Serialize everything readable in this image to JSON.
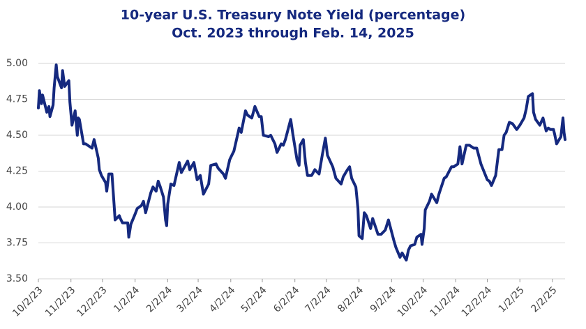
{
  "chart_data": {
    "type": "line",
    "title": "10-year U.S. Treasury Note Yield (percentage)",
    "subtitle": "Oct. 2023 through Feb. 14, 2025",
    "color": "#15297f",
    "grid": true,
    "x": [
      "10/2/23",
      "10/3/23",
      "10/5/23",
      "10/6/23",
      "10/10/23",
      "10/12/23",
      "10/13/23",
      "10/16/23",
      "10/17/23",
      "10/19/23",
      "10/20/23",
      "10/23/23",
      "10/24/23",
      "10/25/23",
      "10/27/23",
      "10/31/23",
      "11/1/23",
      "11/3/23",
      "11/6/23",
      "11/8/23",
      "11/9/23",
      "11/10/23",
      "11/14/23",
      "11/16/23",
      "11/20/23",
      "11/22/23",
      "11/24/23",
      "11/28/23",
      "11/29/23",
      "12/1/23",
      "12/5/23",
      "12/6/23",
      "12/8/23",
      "12/11/23",
      "12/13/23",
      "12/14/23",
      "12/18/23",
      "12/19/23",
      "12/21/23",
      "12/26/23",
      "12/27/23",
      "12/29/23",
      "1/2/24",
      "1/4/24",
      "1/8/24",
      "1/10/24",
      "1/12/24",
      "1/17/24",
      "1/19/24",
      "1/22/24",
      "1/24/24",
      "1/26/24",
      "1/29/24",
      "1/31/24",
      "2/1/24",
      "2/2/24",
      "2/5/24",
      "2/8/24",
      "2/13/24",
      "2/15/24",
      "2/21/24",
      "2/23/24",
      "2/27/24",
      "3/1/24",
      "3/4/24",
      "3/7/24",
      "3/12/24",
      "3/14/24",
      "3/19/24",
      "3/21/24",
      "3/26/24",
      "3/28/24",
      "4/1/24",
      "4/3/24",
      "4/5/24",
      "4/10/24",
      "4/12/24",
      "4/16/24",
      "4/18/24",
      "4/22/24",
      "4/25/24",
      "4/29/24",
      "5/1/24",
      "5/3/24",
      "5/8/24",
      "5/10/24",
      "5/14/24",
      "5/16/24",
      "5/20/24",
      "5/22/24",
      "5/24/24",
      "5/29/24",
      "5/31/24",
      "6/4/24",
      "6/6/24",
      "6/7/24",
      "6/10/24",
      "6/12/24",
      "6/14/24",
      "6/18/24",
      "6/21/24",
      "6/25/24",
      "6/28/24",
      "7/1/24",
      "7/3/24",
      "7/8/24",
      "7/11/24",
      "7/16/24",
      "7/18/24",
      "7/22/24",
      "7/24/24",
      "7/26/24",
      "7/30/24",
      "8/1/24",
      "8/2/24",
      "8/5/24",
      "8/7/24",
      "8/9/24",
      "8/13/24",
      "8/15/24",
      "8/20/24",
      "8/23/24",
      "8/27/24",
      "8/30/24",
      "9/4/24",
      "9/6/24",
      "9/10/24",
      "9/12/24",
      "9/16/24",
      "9/18/24",
      "9/20/24",
      "9/24/24",
      "9/26/24",
      "9/30/24",
      "10/1/24",
      "10/3/24",
      "10/4/24",
      "10/8/24",
      "10/10/24",
      "10/15/24",
      "10/17/24",
      "10/22/24",
      "10/24/24",
      "10/29/24",
      "10/31/24",
      "11/4/24",
      "11/6/24",
      "11/8/24",
      "11/12/24",
      "11/15/24",
      "11/19/24",
      "11/22/24",
      "11/26/24",
      "12/2/24",
      "12/4/24",
      "12/6/24",
      "12/10/24",
      "12/13/24",
      "12/16/24",
      "12/18/24",
      "12/20/24",
      "12/23/24",
      "12/26/24",
      "12/30/24",
      "1/2/25",
      "1/6/25",
      "1/8/25",
      "1/10/25",
      "1/14/25",
      "1/15/25",
      "1/17/25",
      "1/21/25",
      "1/24/25",
      "1/27/25",
      "1/29/25",
      "1/31/25",
      "2/3/25",
      "2/4/25",
      "2/6/25",
      "2/10/25",
      "2/12/25",
      "2/13/25",
      "2/14/25"
    ],
    "values": [
      4.69,
      4.81,
      4.72,
      4.78,
      4.66,
      4.7,
      4.63,
      4.71,
      4.83,
      4.99,
      4.91,
      4.85,
      4.83,
      4.95,
      4.84,
      4.88,
      4.73,
      4.57,
      4.67,
      4.5,
      4.62,
      4.61,
      4.44,
      4.44,
      4.42,
      4.41,
      4.47,
      4.34,
      4.26,
      4.22,
      4.17,
      4.11,
      4.23,
      4.23,
      4.02,
      3.91,
      3.94,
      3.92,
      3.89,
      3.89,
      3.79,
      3.88,
      3.95,
      3.99,
      4.01,
      4.04,
      3.96,
      4.1,
      4.14,
      4.11,
      4.18,
      4.14,
      4.07,
      3.91,
      3.87,
      4.02,
      4.16,
      4.15,
      4.31,
      4.24,
      4.32,
      4.26,
      4.31,
      4.19,
      4.22,
      4.09,
      4.16,
      4.29,
      4.3,
      4.27,
      4.23,
      4.2,
      4.33,
      4.36,
      4.39,
      4.55,
      4.52,
      4.67,
      4.64,
      4.62,
      4.7,
      4.63,
      4.63,
      4.5,
      4.49,
      4.5,
      4.44,
      4.38,
      4.44,
      4.43,
      4.47,
      4.61,
      4.51,
      4.33,
      4.29,
      4.43,
      4.47,
      4.31,
      4.22,
      4.22,
      4.26,
      4.23,
      4.36,
      4.48,
      4.36,
      4.28,
      4.2,
      4.16,
      4.21,
      4.26,
      4.28,
      4.2,
      4.14,
      3.99,
      3.8,
      3.78,
      3.96,
      3.94,
      3.85,
      3.92,
      3.81,
      3.81,
      3.84,
      3.91,
      3.77,
      3.72,
      3.65,
      3.68,
      3.63,
      3.7,
      3.73,
      3.74,
      3.79,
      3.81,
      3.74,
      3.85,
      3.98,
      4.04,
      4.09,
      4.03,
      4.09,
      4.2,
      4.21,
      4.28,
      4.28,
      4.3,
      4.42,
      4.3,
      4.43,
      4.43,
      4.41,
      4.41,
      4.3,
      4.19,
      4.18,
      4.15,
      4.22,
      4.4,
      4.4,
      4.5,
      4.52,
      4.59,
      4.58,
      4.54,
      4.57,
      4.62,
      4.68,
      4.77,
      4.79,
      4.66,
      4.61,
      4.57,
      4.62,
      4.53,
      4.55,
      4.54,
      4.54,
      4.51,
      4.44,
      4.49,
      4.62,
      4.52,
      4.47
    ],
    "xlim": [
      "10/2/23",
      "2/14/25"
    ],
    "xticks": [
      "10/2/23",
      "11/2/23",
      "12/2/23",
      "1/2/24",
      "2/2/24",
      "3/2/24",
      "4/2/24",
      "5/2/24",
      "6/2/24",
      "7/2/24",
      "8/2/24",
      "9/2/24",
      "10/2/24",
      "11/2/24",
      "12/2/24",
      "1/2/25",
      "2/2/25"
    ],
    "ylim": [
      3.5,
      5.0
    ],
    "yticks": [
      {
        "value": 3.5,
        "label": "3.50"
      },
      {
        "value": 3.75,
        "label": "3.75"
      },
      {
        "value": 4,
        "label": "4.00"
      },
      {
        "value": 4.25,
        "label": "4.25"
      },
      {
        "value": 4.5,
        "label": "4.50"
      },
      {
        "value": 4.75,
        "label": "4.75"
      },
      {
        "value": 5,
        "label": "5.00"
      }
    ]
  }
}
